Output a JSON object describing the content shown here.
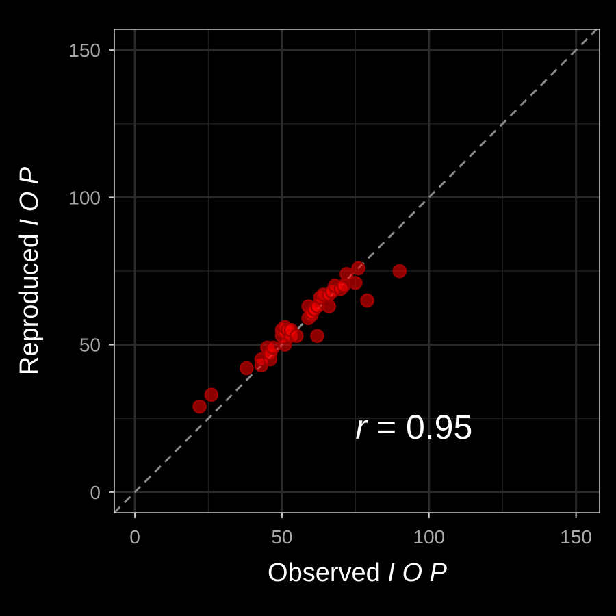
{
  "chart_data": {
    "type": "scatter",
    "title": "",
    "xlabel_prefix": "Observed ",
    "xlabel_italic": "I O P",
    "ylabel_prefix": "Reproduced  ",
    "ylabel_italic": "I O P",
    "xlim": [
      -7,
      158
    ],
    "ylim": [
      -7,
      157
    ],
    "x_ticks": [
      0,
      50,
      100,
      150
    ],
    "y_ticks": [
      0,
      50,
      100,
      150
    ],
    "x_tick_labels": [
      "0",
      "50",
      "100",
      "150"
    ],
    "y_tick_labels": [
      "0",
      "50",
      "100",
      "150"
    ],
    "grid": true,
    "reference_line": "y = x (dashed)",
    "annotation": {
      "italic": "r",
      "rest": " = 0.95",
      "x": 75,
      "y": 22
    },
    "colors": {
      "background": "#000000",
      "point_fill": "#ff0000",
      "point_edge": "#a00000",
      "grid": "#1e1e1e",
      "reference_line": "#8a8a8a",
      "text": "#ffffff",
      "tick_text": "#a8a8a8"
    },
    "points": [
      {
        "x": 22,
        "y": 29
      },
      {
        "x": 26,
        "y": 33
      },
      {
        "x": 38,
        "y": 42
      },
      {
        "x": 43,
        "y": 43
      },
      {
        "x": 43,
        "y": 45
      },
      {
        "x": 45,
        "y": 49
      },
      {
        "x": 46,
        "y": 45
      },
      {
        "x": 46,
        "y": 47
      },
      {
        "x": 47,
        "y": 49
      },
      {
        "x": 50,
        "y": 53
      },
      {
        "x": 50,
        "y": 55
      },
      {
        "x": 51,
        "y": 50
      },
      {
        "x": 51,
        "y": 54
      },
      {
        "x": 51,
        "y": 56
      },
      {
        "x": 52,
        "y": 55
      },
      {
        "x": 53,
        "y": 53
      },
      {
        "x": 53,
        "y": 55
      },
      {
        "x": 55,
        "y": 53
      },
      {
        "x": 59,
        "y": 59
      },
      {
        "x": 59,
        "y": 63
      },
      {
        "x": 60,
        "y": 60
      },
      {
        "x": 60,
        "y": 61
      },
      {
        "x": 61,
        "y": 62
      },
      {
        "x": 62,
        "y": 53
      },
      {
        "x": 62,
        "y": 63
      },
      {
        "x": 63,
        "y": 66
      },
      {
        "x": 64,
        "y": 67
      },
      {
        "x": 66,
        "y": 63
      },
      {
        "x": 66,
        "y": 67
      },
      {
        "x": 67,
        "y": 68
      },
      {
        "x": 68,
        "y": 70
      },
      {
        "x": 70,
        "y": 69
      },
      {
        "x": 71,
        "y": 70
      },
      {
        "x": 72,
        "y": 74
      },
      {
        "x": 75,
        "y": 71
      },
      {
        "x": 76,
        "y": 76
      },
      {
        "x": 79,
        "y": 65
      },
      {
        "x": 90,
        "y": 75
      }
    ]
  }
}
